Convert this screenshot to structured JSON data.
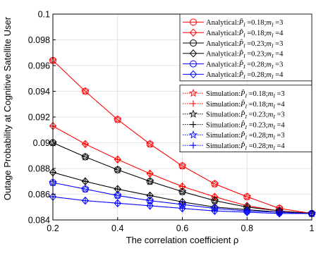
{
  "chart_data": {
    "type": "line",
    "xlabel": "The correlation coefficient ρ",
    "ylabel": "Outage Probability at Cognitive Satellite User",
    "xlim": [
      0.2,
      1.0
    ],
    "ylim": [
      0.084,
      0.1
    ],
    "x_ticks": [
      "0.2",
      "0.4",
      "0.6",
      "0.8",
      "1"
    ],
    "y_ticks": [
      "0.084",
      "0.086",
      "0.088",
      "0.09",
      "0.092",
      "0.094",
      "0.096",
      "0.098",
      "0.1"
    ],
    "x": [
      0.2,
      0.3,
      0.4,
      0.5,
      0.6,
      0.7,
      0.8,
      0.9,
      1.0
    ],
    "grid": true,
    "legend_position": "top-right",
    "series": [
      {
        "name": "Analytical:P̂I =0.18;mI =3",
        "color": "#ff0000",
        "marker": "circle",
        "dash": "solid",
        "values": [
          0.0964,
          0.094,
          0.0918,
          0.0899,
          0.0882,
          0.0868,
          0.0858,
          0.0849,
          0.0845
        ]
      },
      {
        "name": "Analytical:P̂I =0.18;mI =4",
        "color": "#ff0000",
        "marker": "diamond",
        "dash": "solid",
        "values": [
          0.0913,
          0.0899,
          0.0887,
          0.0876,
          0.0866,
          0.0858,
          0.0851,
          0.0847,
          0.0845
        ]
      },
      {
        "name": "Analytical:P̂I =0.23;mI =3",
        "color": "#000000",
        "marker": "circle",
        "dash": "solid",
        "values": [
          0.09,
          0.0889,
          0.0879,
          0.087,
          0.0862,
          0.0855,
          0.085,
          0.0847,
          0.0845
        ]
      },
      {
        "name": "Analytical:P̂I =0.23;mI =4",
        "color": "#000000",
        "marker": "diamond",
        "dash": "solid",
        "values": [
          0.0877,
          0.087,
          0.0864,
          0.0859,
          0.0854,
          0.085,
          0.0848,
          0.0846,
          0.0845
        ]
      },
      {
        "name": "Analytical:P̂I =0.28;mI =3",
        "color": "#0000ff",
        "marker": "circle",
        "dash": "solid",
        "values": [
          0.0869,
          0.0864,
          0.0859,
          0.0855,
          0.0852,
          0.0849,
          0.0847,
          0.0846,
          0.0845
        ]
      },
      {
        "name": "Analytical:P̂I =0.28;mI =4",
        "color": "#0000ff",
        "marker": "diamond",
        "dash": "solid",
        "values": [
          0.0858,
          0.0855,
          0.0853,
          0.0851,
          0.0849,
          0.0847,
          0.0846,
          0.0845,
          0.0845
        ]
      },
      {
        "name": "Simulation:P̂I =0.18;mI =3",
        "color": "#ff0000",
        "marker": "star",
        "dash": "dotted",
        "values": [
          0.0964,
          0.094,
          0.0918,
          0.0899,
          0.0882,
          0.0868,
          0.0858,
          0.0849,
          0.0845
        ]
      },
      {
        "name": "Simulation:P̂I =0.18;mI =4",
        "color": "#ff0000",
        "marker": "plus",
        "dash": "dotted",
        "values": [
          0.0913,
          0.0899,
          0.0887,
          0.0876,
          0.0866,
          0.0858,
          0.0851,
          0.0847,
          0.0845
        ]
      },
      {
        "name": "Simulation:P̂I =0.23;mI =3",
        "color": "#000000",
        "marker": "star",
        "dash": "dotted",
        "values": [
          0.09,
          0.0889,
          0.0879,
          0.087,
          0.0862,
          0.0855,
          0.085,
          0.0847,
          0.0845
        ]
      },
      {
        "name": "Simulation:P̂I =0.23;mI =4",
        "color": "#000000",
        "marker": "plus",
        "dash": "dotted",
        "values": [
          0.0877,
          0.087,
          0.0864,
          0.0859,
          0.0854,
          0.085,
          0.0848,
          0.0846,
          0.0845
        ]
      },
      {
        "name": "Simulation:P̂I =0.28;mI =3",
        "color": "#0000ff",
        "marker": "star",
        "dash": "dotted",
        "values": [
          0.0869,
          0.0864,
          0.0859,
          0.0855,
          0.0852,
          0.0849,
          0.0847,
          0.0846,
          0.0845
        ]
      },
      {
        "name": "Simulation:P̂I =0.28;mI =4",
        "color": "#0000ff",
        "marker": "plus",
        "dash": "dotted",
        "values": [
          0.0858,
          0.0855,
          0.0853,
          0.0851,
          0.0849,
          0.0847,
          0.0846,
          0.0845,
          0.0845
        ]
      }
    ],
    "legend": [
      {
        "prefix": "Analytical:",
        "p": "0.18",
        "m": "3",
        "color": "#ff0000",
        "marker": "circle",
        "dash": "solid"
      },
      {
        "prefix": "Analytical:",
        "p": "0.18",
        "m": "4",
        "color": "#ff0000",
        "marker": "diamond",
        "dash": "solid"
      },
      {
        "prefix": "Analytical:",
        "p": "0.23",
        "m": "3",
        "color": "#000000",
        "marker": "circle",
        "dash": "solid"
      },
      {
        "prefix": "Analytical:",
        "p": "0.23",
        "m": "4",
        "color": "#000000",
        "marker": "diamond",
        "dash": "solid"
      },
      {
        "prefix": "Analytical:",
        "p": "0.28",
        "m": "3",
        "color": "#0000ff",
        "marker": "circle",
        "dash": "solid"
      },
      {
        "prefix": "Analytical:",
        "p": "0.28",
        "m": "4",
        "color": "#0000ff",
        "marker": "diamond",
        "dash": "solid"
      },
      {
        "prefix": "Simulation:",
        "p": "0.18",
        "m": "3",
        "color": "#ff0000",
        "marker": "star",
        "dash": "dotted"
      },
      {
        "prefix": "Simulation:",
        "p": "0.18",
        "m": "4",
        "color": "#ff0000",
        "marker": "plus",
        "dash": "dotted"
      },
      {
        "prefix": "Simulation:",
        "p": "0.23",
        "m": "3",
        "color": "#000000",
        "marker": "star",
        "dash": "dotted"
      },
      {
        "prefix": "Simulation:",
        "p": "0.23",
        "m": "4",
        "color": "#000000",
        "marker": "plus",
        "dash": "dotted"
      },
      {
        "prefix": "Simulation:",
        "p": "0.28",
        "m": "3",
        "color": "#0000ff",
        "marker": "star",
        "dash": "dotted"
      },
      {
        "prefix": "Simulation:",
        "p": "0.28",
        "m": "4",
        "color": "#0000ff",
        "marker": "plus",
        "dash": "dotted"
      }
    ]
  }
}
